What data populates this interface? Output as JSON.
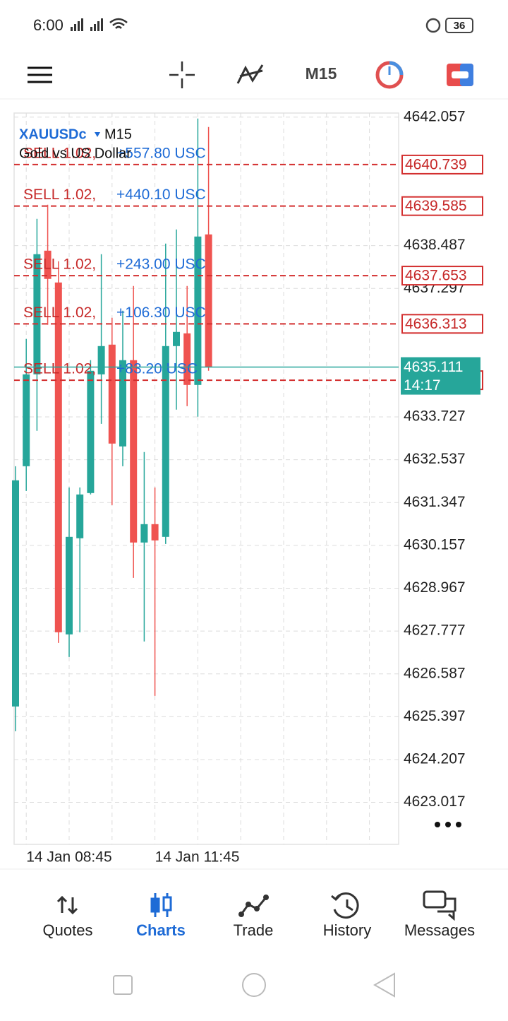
{
  "status_bar": {
    "time": "6:00",
    "battery": "36"
  },
  "toolbar": {
    "timeframe": "M15"
  },
  "chart": {
    "type": "candlestick",
    "symbol": "XAUUSDc",
    "timeframe": "M15",
    "description": "Gold vs US Dollar",
    "categories": [
      null,
      "14 Jan 08:45",
      null,
      null,
      null,
      null,
      null,
      null,
      null,
      null,
      null,
      null,
      null,
      "14 Jan 11:45",
      null,
      null,
      null,
      null,
      null
    ],
    "open": [
      4625.681,
      4632.357,
      4634.91,
      4638.346,
      4637.462,
      4627.684,
      4630.355,
      4631.611,
      4634.91,
      4635.735,
      4632.907,
      4635.303,
      4630.237,
      4630.747,
      4630.394,
      4635.695,
      4636.049,
      4634.615,
      4638.798
    ],
    "high": [
      4632.357,
      4635.892,
      4639.23,
      4639.622,
      4638.051,
      4631.768,
      4631.768,
      4635.303,
      4638.248,
      4636.481,
      4636.677,
      4637.364,
      4632.75,
      4631.768,
      4638.542,
      4638.935,
      4637.364,
      4642.018,
      4641.782
    ],
    "low": [
      4624.994,
      4631.67,
      4633.339,
      4636.284,
      4627.449,
      4627.056,
      4627.743,
      4631.572,
      4633.535,
      4631.277,
      4632.357,
      4629.255,
      4627.488,
      4625.976,
      4630.197,
      4633.928,
      4634.026,
      4633.732,
      4635.008
    ],
    "close": [
      4631.965,
      4634.91,
      4638.248,
      4637.561,
      4627.743,
      4630.394,
      4631.572,
      4635.008,
      4635.695,
      4632.986,
      4635.303,
      4630.237,
      4630.747,
      4630.296,
      4635.695,
      4636.088,
      4634.615,
      4638.739,
      4635.106
    ],
    "up_color": "#26a69a",
    "down_color": "#ef5350",
    "ylim": [
      4621.85,
      4642.17
    ],
    "yticks": [
      4642.057,
      4638.487,
      4637.297,
      4633.727,
      4632.537,
      4631.347,
      4630.157,
      4628.967,
      4627.777,
      4626.587,
      4625.397,
      4624.207,
      4623.017
    ],
    "grid": true,
    "current_price": 4635.111,
    "current_time": "14:17",
    "orders": [
      {
        "label": "SELL 1.02,",
        "profit": "+557.80 USC",
        "price": 4640.739
      },
      {
        "label": "SELL 1.02,",
        "profit": "+440.10 USC",
        "price": 4639.585
      },
      {
        "label": "SELL 1.02,",
        "profit": "+243.00 USC",
        "price": 4637.653
      },
      {
        "label": "SELL 1.02,",
        "profit": "+106.30 USC",
        "price": 4636.313
      },
      {
        "label": "SELL 1.02,",
        "profit": "+83.20 USC",
        "price": 4634.747
      }
    ]
  },
  "nav": {
    "items": [
      "Quotes",
      "Charts",
      "Trade",
      "History",
      "Messages"
    ],
    "active": 1
  }
}
